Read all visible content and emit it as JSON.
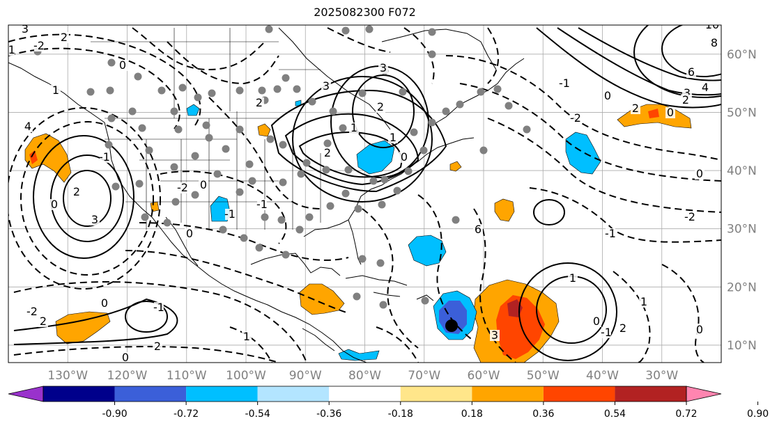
{
  "title": "2025082300 F072",
  "map": {
    "projection": "plate-carree",
    "lon_range": [
      -140,
      -20
    ],
    "lat_range": [
      7,
      65
    ],
    "grid": true,
    "lon_ticks": [
      "130°W",
      "120°W",
      "110°W",
      "100°W",
      "90°W",
      "80°W",
      "70°W",
      "60°W",
      "50°W",
      "40°W",
      "30°W"
    ],
    "lat_ticks": [
      "60°N",
      "50°N",
      "40°N",
      "30°N",
      "20°N",
      "10°N"
    ],
    "contour_labels": [
      "2",
      "3",
      "0",
      "-1",
      "-2",
      "1",
      "4",
      "2",
      "3",
      "0",
      "-1",
      "2",
      "3",
      "10",
      "8",
      "6",
      "4",
      "3",
      "2",
      "0",
      "-1",
      "-2",
      "3",
      "1",
      "2",
      "0",
      "-1",
      "-2",
      "0",
      "-1",
      "1",
      "2",
      "0",
      "0",
      "-1",
      "-2",
      "2",
      "1",
      "2",
      "0",
      "-1",
      "-2",
      "0",
      "1",
      "0",
      "-1",
      "2",
      "0",
      "6",
      "3",
      "2",
      "0",
      "1"
    ],
    "station_marker_color": "#808080",
    "shading_colors": {
      "negative": "#00bfff",
      "negative_strong": "#3b5fd9",
      "positive": "#ffa500",
      "positive_strong": "#ff4500",
      "positive_max": "#b22222"
    }
  },
  "colorbar": {
    "levels": [
      "-0.90",
      "-0.72",
      "-0.54",
      "-0.36",
      "-0.18",
      "0.18",
      "0.36",
      "0.54",
      "0.72",
      "0.90"
    ],
    "colors": [
      "#9932cc",
      "#00008b",
      "#3b5fd9",
      "#00bfff",
      "#b3e5ff",
      "#ffffff",
      "#ffe68a",
      "#ffa500",
      "#ff4500",
      "#b22222",
      "#ff85b0"
    ],
    "extend": "both"
  }
}
